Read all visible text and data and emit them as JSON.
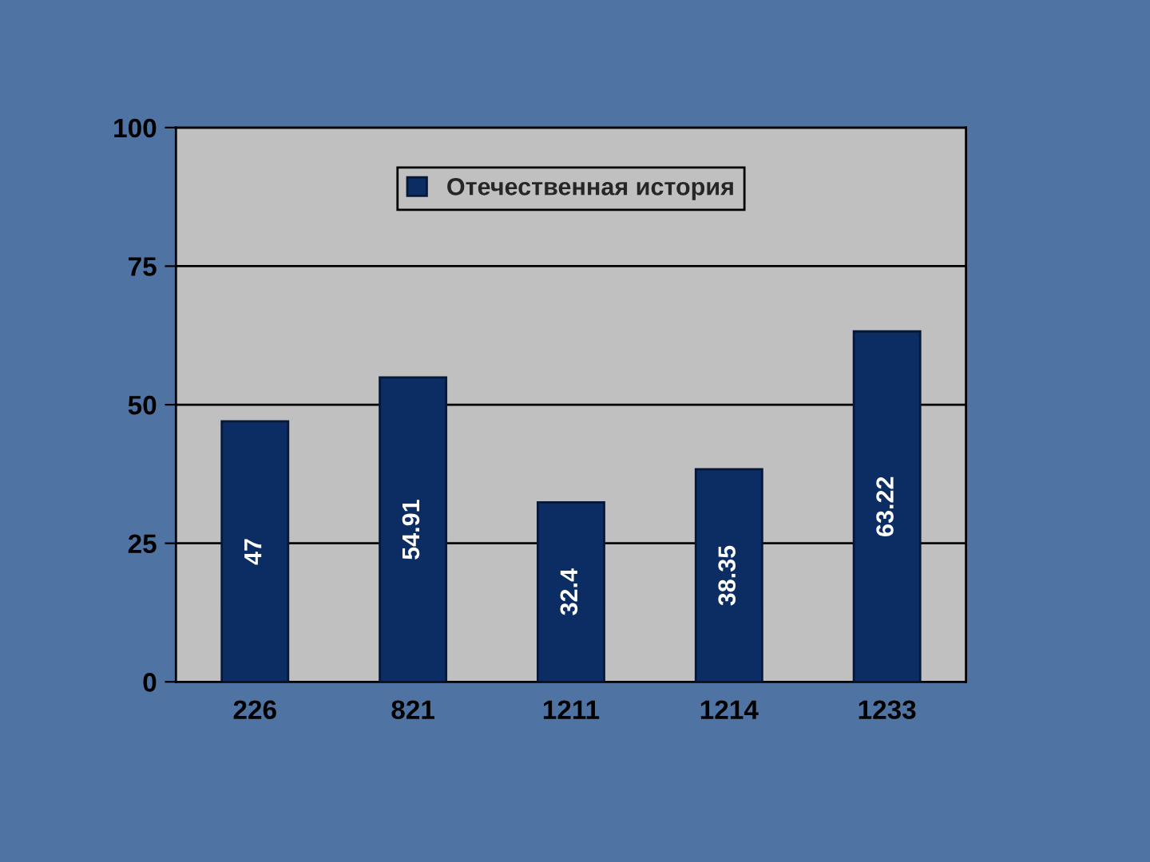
{
  "chart_data": {
    "type": "bar",
    "categories": [
      "226",
      "821",
      "1211",
      "1214",
      "1233"
    ],
    "series": [
      {
        "name": "Отечественная история",
        "color": "#0b2d63",
        "values": [
          47,
          54.91,
          32.4,
          38.35,
          63.22
        ]
      }
    ],
    "ylim": [
      0,
      100
    ],
    "yticks": [
      0,
      25,
      50,
      75,
      100
    ],
    "grid": "y",
    "legend": "top",
    "data_labels": true
  }
}
